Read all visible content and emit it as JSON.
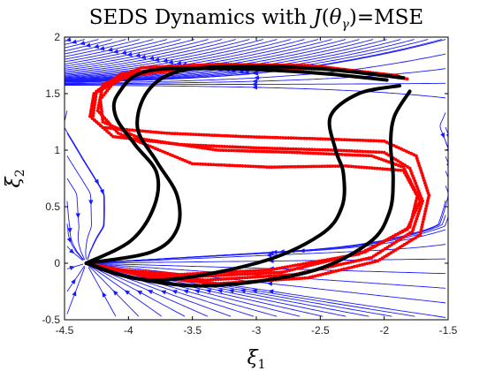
{
  "chart_data": {
    "type": "streamplot",
    "title": "SEDS Dynamics with J(θγ)=MSE",
    "title_parts": {
      "pre": "SEDS Dynamics with ",
      "J": "J",
      "open": "(",
      "theta": "θ",
      "gamma": "γ",
      "close": ")",
      "post": "=MSE"
    },
    "xlabel": "ξ1",
    "xlabel_parts": {
      "sym": "ξ",
      "sub": "1"
    },
    "ylabel": "ξ2",
    "ylabel_parts": {
      "sym": "ξ",
      "sub": "2"
    },
    "xlim": [
      -4.5,
      -1.5
    ],
    "ylim": [
      -0.5,
      2
    ],
    "xticks": [
      -4.5,
      -4,
      -3.5,
      -3,
      -2.5,
      -2,
      -1.5
    ],
    "xtick_labels": [
      "-4.5",
      "-4",
      "-3.5",
      "-3",
      "-2.5",
      "-2",
      "-1.5"
    ],
    "yticks": [
      -0.5,
      0,
      0.5,
      1,
      1.5,
      2
    ],
    "ytick_labels": [
      "-0.5",
      "0",
      "0.5",
      "1",
      "1.5",
      "2"
    ],
    "attractor": [
      -4.33,
      0.0
    ],
    "colors": {
      "streamlines": "#1a1aff",
      "demonstrations": "#ff0000",
      "reproductions": "#000000"
    },
    "series": [
      {
        "kind": "demonstrations",
        "trajectories": [
          [
            [
              -1.85,
              1.64
            ],
            [
              -2.4,
              1.72
            ],
            [
              -3.0,
              1.74
            ],
            [
              -3.6,
              1.73
            ],
            [
              -4.05,
              1.68
            ],
            [
              -4.25,
              1.52
            ],
            [
              -4.28,
              1.28
            ],
            [
              -4.12,
              1.12
            ],
            [
              -3.6,
              1.05
            ],
            [
              -3.0,
              1.02
            ],
            [
              -2.4,
              1.0
            ],
            [
              -2.0,
              0.98
            ],
            [
              -1.8,
              0.84
            ],
            [
              -1.7,
              0.55
            ],
            [
              -1.78,
              0.28
            ],
            [
              -2.1,
              0.05
            ],
            [
              -2.7,
              -0.1
            ],
            [
              -3.4,
              -0.15
            ],
            [
              -3.9,
              -0.1
            ],
            [
              -4.33,
              0.0
            ]
          ],
          [
            [
              -1.88,
              1.65
            ],
            [
              -2.5,
              1.74
            ],
            [
              -3.1,
              1.75
            ],
            [
              -3.7,
              1.72
            ],
            [
              -4.1,
              1.62
            ],
            [
              -4.22,
              1.45
            ],
            [
              -4.2,
              1.25
            ],
            [
              -3.9,
              1.1
            ],
            [
              -3.3,
              1.0
            ],
            [
              -2.7,
              0.98
            ],
            [
              -2.1,
              0.95
            ],
            [
              -1.85,
              0.85
            ],
            [
              -1.74,
              0.6
            ],
            [
              -1.8,
              0.32
            ],
            [
              -2.15,
              0.1
            ],
            [
              -2.8,
              -0.08
            ],
            [
              -3.5,
              -0.12
            ],
            [
              -4.0,
              -0.08
            ],
            [
              -4.33,
              0.0
            ]
          ],
          [
            [
              -1.82,
              1.63
            ],
            [
              -2.3,
              1.71
            ],
            [
              -2.9,
              1.73
            ],
            [
              -3.5,
              1.72
            ],
            [
              -4.0,
              1.66
            ],
            [
              -4.27,
              1.5
            ],
            [
              -4.3,
              1.3
            ],
            [
              -4.2,
              1.2
            ],
            [
              -3.7,
              1.15
            ],
            [
              -3.1,
              1.12
            ],
            [
              -2.5,
              1.1
            ],
            [
              -2.0,
              1.08
            ],
            [
              -1.75,
              0.95
            ],
            [
              -1.65,
              0.6
            ],
            [
              -1.72,
              0.25
            ],
            [
              -2.05,
              0.02
            ],
            [
              -2.6,
              -0.13
            ],
            [
              -3.3,
              -0.18
            ],
            [
              -3.85,
              -0.12
            ],
            [
              -4.33,
              0.0
            ]
          ],
          [
            [
              -1.9,
              1.66
            ],
            [
              -2.6,
              1.75
            ],
            [
              -3.3,
              1.76
            ],
            [
              -3.9,
              1.73
            ],
            [
              -4.2,
              1.58
            ],
            [
              -4.24,
              1.35
            ],
            [
              -4.08,
              1.15
            ],
            [
              -3.5,
              0.88
            ],
            [
              -2.9,
              0.85
            ],
            [
              -2.3,
              0.86
            ],
            [
              -1.85,
              0.82
            ],
            [
              -1.72,
              0.55
            ],
            [
              -1.82,
              0.3
            ],
            [
              -2.2,
              0.08
            ],
            [
              -2.9,
              -0.06
            ],
            [
              -3.6,
              -0.1
            ],
            [
              -4.05,
              -0.06
            ],
            [
              -4.33,
              0.0
            ]
          ]
        ]
      },
      {
        "kind": "reproductions",
        "trajectories": [
          [
            [
              -1.85,
              1.64
            ],
            [
              -2.5,
              1.72
            ],
            [
              -3.1,
              1.74
            ],
            [
              -3.6,
              1.7
            ],
            [
              -3.85,
              1.52
            ],
            [
              -3.93,
              1.2
            ],
            [
              -3.78,
              0.9
            ],
            [
              -3.62,
              0.6
            ],
            [
              -3.62,
              0.3
            ],
            [
              -3.82,
              0.1
            ],
            [
              -4.33,
              0.0
            ]
          ],
          [
            [
              -1.98,
              1.62
            ],
            [
              -2.5,
              1.68
            ],
            [
              -3.2,
              1.72
            ],
            [
              -3.85,
              1.7
            ],
            [
              -4.08,
              1.5
            ],
            [
              -4.1,
              1.3
            ],
            [
              -3.95,
              1.05
            ],
            [
              -3.78,
              0.8
            ],
            [
              -3.8,
              0.5
            ],
            [
              -3.98,
              0.2
            ],
            [
              -4.33,
              0.0
            ]
          ],
          [
            [
              -1.88,
              1.57
            ],
            [
              -2.2,
              1.5
            ],
            [
              -2.42,
              1.3
            ],
            [
              -2.38,
              1.0
            ],
            [
              -2.32,
              0.8
            ],
            [
              -2.33,
              0.5
            ],
            [
              -2.5,
              0.25
            ],
            [
              -3.0,
              0.0
            ],
            [
              -3.8,
              -0.15
            ],
            [
              -4.33,
              0.0
            ]
          ],
          [
            [
              -1.8,
              1.52
            ],
            [
              -1.92,
              1.3
            ],
            [
              -1.95,
              1.05
            ],
            [
              -1.93,
              0.75
            ],
            [
              -1.96,
              0.45
            ],
            [
              -2.12,
              0.18
            ],
            [
              -2.6,
              -0.08
            ],
            [
              -3.4,
              -0.2
            ],
            [
              -4.0,
              -0.12
            ],
            [
              -4.33,
              0.0
            ]
          ]
        ]
      }
    ]
  }
}
